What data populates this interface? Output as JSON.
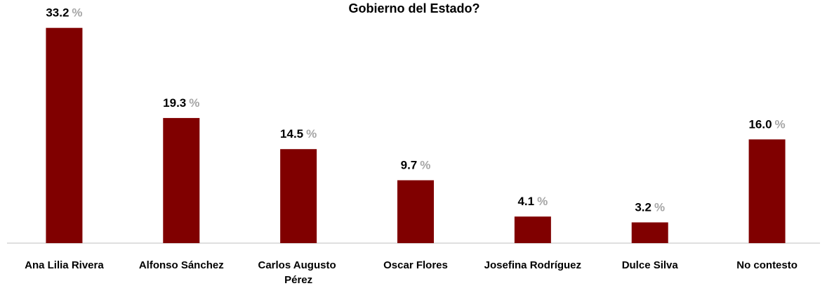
{
  "chart_data": {
    "type": "bar",
    "title": "Gobierno del Estado?",
    "categories": [
      "Ana Lilia Rivera",
      "Alfonso Sánchez",
      "Carlos Augusto Pérez",
      "Oscar Flores",
      "Josefina Rodríguez",
      "Dulce Silva",
      "No contesto"
    ],
    "values": [
      33.2,
      19.3,
      14.5,
      9.7,
      4.1,
      3.2,
      16.0
    ],
    "value_labels": [
      "33.2",
      "19.3",
      "14.5",
      "9.7",
      "4.1",
      "3.2",
      "16.0"
    ],
    "value_unit": "%",
    "color": "#800000",
    "ylim": [
      0,
      37.5
    ]
  }
}
